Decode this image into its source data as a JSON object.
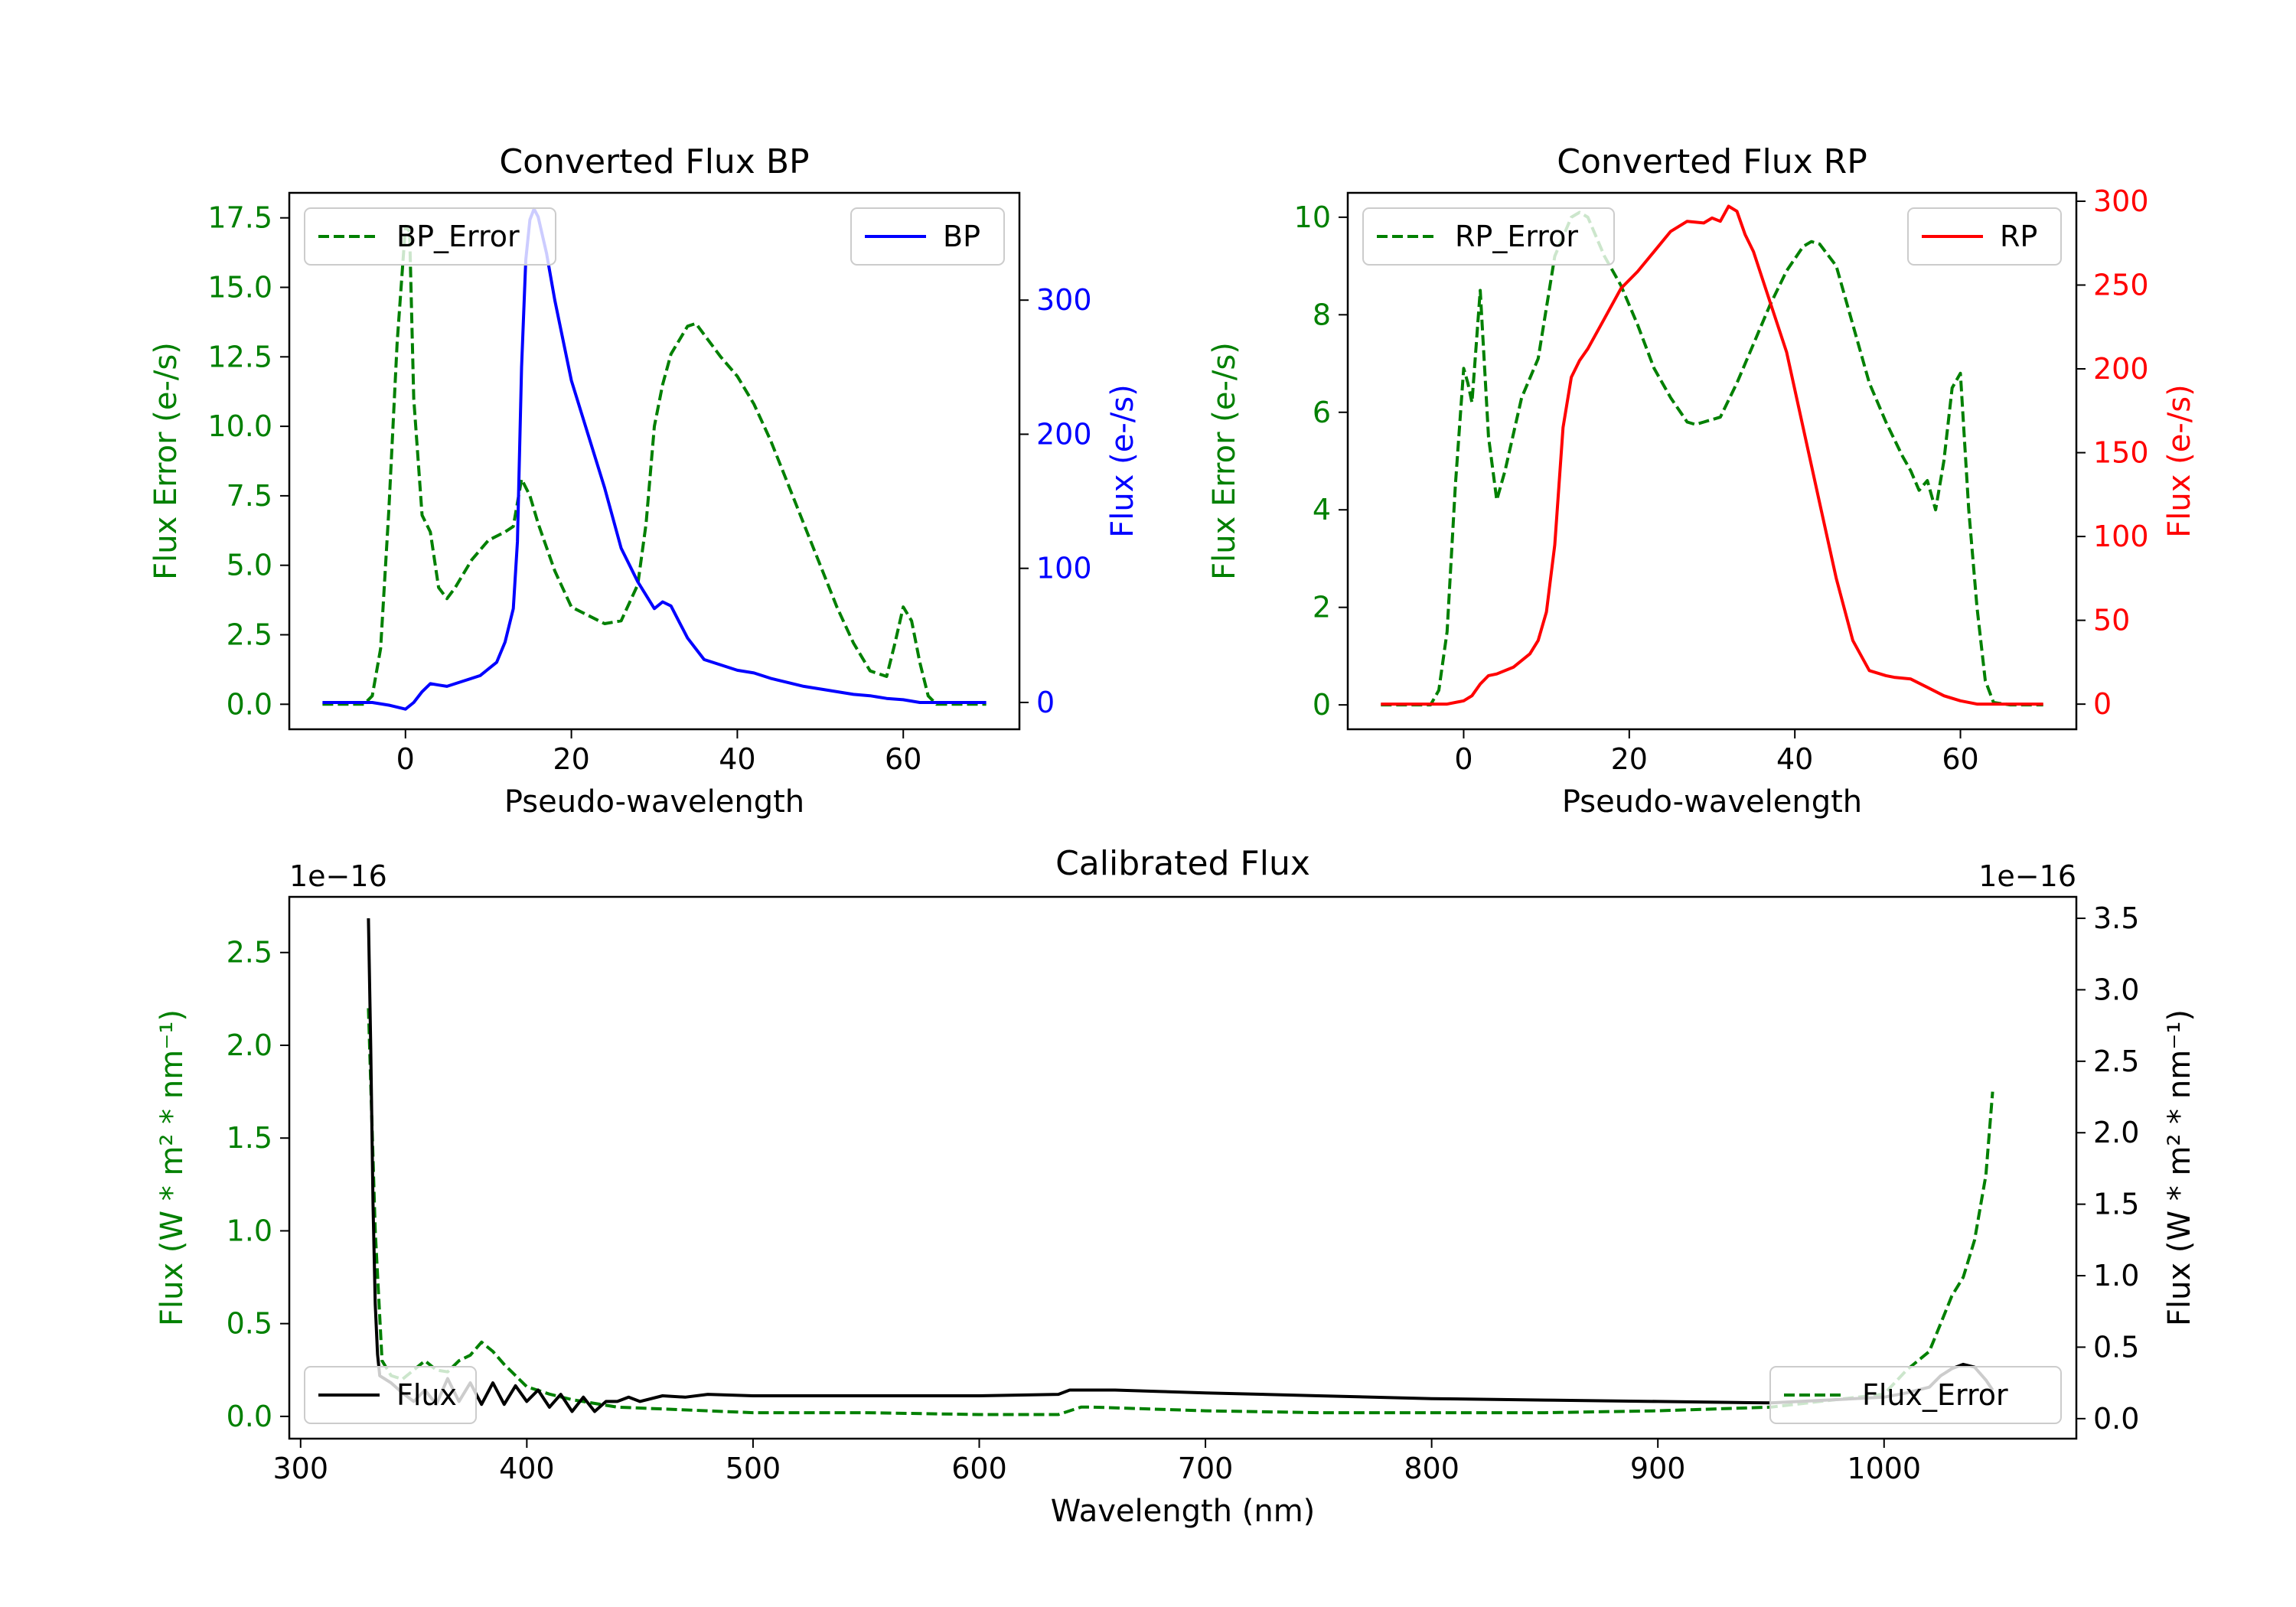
{
  "colors": {
    "bp": "#0000ff",
    "rp": "#ff0000",
    "error": "#008000",
    "flux": "#000000"
  },
  "chart_data": [
    {
      "id": "bp",
      "type": "line",
      "title": "Converted Flux BP",
      "xlabel": "Pseudo-wavelength",
      "ylabel_left": "Flux Error (e-/s)",
      "ylabel_right": "Flux (e-/s)",
      "xlim": [
        -14,
        74
      ],
      "ylim_left": [
        -0.9,
        18.4
      ],
      "ylim_right": [
        -20,
        380
      ],
      "xticks": [
        "0",
        "20",
        "40",
        "60"
      ],
      "yticks_left": [
        "0.0",
        "2.5",
        "5.0",
        "7.5",
        "10.0",
        "12.5",
        "15.0",
        "17.5"
      ],
      "yticks_right": [
        "0",
        "100",
        "200",
        "300"
      ],
      "series": [
        {
          "name": "BP_Error",
          "axis": "left",
          "style": "dashed",
          "color": "#008000",
          "legend": "top-left",
          "x": [
            -10,
            -5,
            -4,
            -3,
            -2,
            -1,
            0,
            0.5,
            1,
            2,
            3,
            4,
            5,
            6,
            8,
            10,
            12,
            13,
            14,
            15,
            16,
            18,
            20,
            22,
            24,
            26,
            28,
            29,
            30,
            31,
            32,
            34,
            35,
            36,
            38,
            40,
            42,
            44,
            46,
            48,
            50,
            52,
            54,
            56,
            58,
            59,
            60,
            61,
            62,
            63,
            64,
            66,
            68,
            70
          ],
          "y": [
            0,
            0,
            0.3,
            2,
            7,
            13,
            17.2,
            17,
            11,
            6.8,
            6.2,
            4.2,
            3.8,
            4.2,
            5.2,
            5.9,
            6.2,
            6.4,
            8.1,
            7.5,
            6.5,
            4.8,
            3.5,
            3.2,
            2.9,
            3.0,
            4.3,
            6.5,
            10,
            11.5,
            12.6,
            13.6,
            13.7,
            13.3,
            12.5,
            11.8,
            10.8,
            9.5,
            8.0,
            6.5,
            5.0,
            3.5,
            2.2,
            1.2,
            1.0,
            2.2,
            3.5,
            3.0,
            1.5,
            0.3,
            0,
            0,
            0,
            0
          ]
        },
        {
          "name": "BP",
          "axis": "right",
          "style": "solid",
          "color": "#0000ff",
          "legend": "top-right",
          "x": [
            -10,
            -4,
            -2,
            0,
            1,
            2,
            3,
            4,
            5,
            7,
            9,
            11,
            12,
            13,
            13.5,
            14,
            14.5,
            15,
            15.5,
            16,
            17,
            18,
            20,
            22,
            24,
            26,
            28,
            30,
            31,
            32,
            33,
            34,
            35,
            36,
            38,
            40,
            42,
            44,
            46,
            48,
            50,
            52,
            54,
            56,
            58,
            60,
            62,
            64,
            66,
            68,
            70
          ],
          "y": [
            0,
            0,
            -2,
            -5,
            0,
            8,
            14,
            13,
            12,
            16,
            20,
            30,
            45,
            70,
            120,
            250,
            330,
            360,
            368,
            362,
            335,
            300,
            240,
            200,
            160,
            115,
            90,
            70,
            75,
            72,
            60,
            48,
            40,
            32,
            28,
            24,
            22,
            18,
            15,
            12,
            10,
            8,
            6,
            5,
            3,
            2,
            0,
            0,
            0,
            0,
            0
          ]
        }
      ]
    },
    {
      "id": "rp",
      "type": "line",
      "title": "Converted Flux RP",
      "xlabel": "Pseudo-wavelength",
      "ylabel_left": "Flux Error (e-/s)",
      "ylabel_right": "Flux (e-/s)",
      "xlim": [
        -14,
        74
      ],
      "ylim_left": [
        -0.5,
        10.5
      ],
      "ylim_right": [
        -15,
        305
      ],
      "xticks": [
        "0",
        "20",
        "40",
        "60"
      ],
      "yticks_left": [
        "0",
        "2",
        "4",
        "6",
        "8",
        "10"
      ],
      "yticks_right": [
        "0",
        "50",
        "100",
        "150",
        "200",
        "250",
        "300"
      ],
      "series": [
        {
          "name": "RP_Error",
          "axis": "left",
          "style": "dashed",
          "color": "#008000",
          "legend": "top-left",
          "x": [
            -10,
            -4,
            -3,
            -2,
            -1,
            0,
            0.5,
            1,
            2,
            2.5,
            3,
            4,
            5,
            7,
            9,
            11,
            13,
            14,
            15,
            17,
            19,
            21,
            23,
            25,
            27,
            28,
            29,
            31,
            33,
            35,
            37,
            39,
            41,
            42,
            43,
            45,
            47,
            49,
            51,
            53,
            54,
            55,
            56,
            57,
            58,
            59,
            60,
            61,
            62,
            63,
            64,
            66,
            70
          ],
          "y": [
            0,
            0,
            0.3,
            1.5,
            4.5,
            6.9,
            6.6,
            6.2,
            8.5,
            7.0,
            5.5,
            4.2,
            4.8,
            6.3,
            7.1,
            9.2,
            10.0,
            10.1,
            10.0,
            9.2,
            8.6,
            7.8,
            6.9,
            6.3,
            5.8,
            5.75,
            5.8,
            5.9,
            6.6,
            7.4,
            8.2,
            8.9,
            9.4,
            9.5,
            9.45,
            9.0,
            7.8,
            6.6,
            5.8,
            5.1,
            4.8,
            4.4,
            4.6,
            4.0,
            5.0,
            6.5,
            6.8,
            4.0,
            2.0,
            0.5,
            0.05,
            0,
            0
          ]
        },
        {
          "name": "RP",
          "axis": "right",
          "style": "solid",
          "color": "#ff0000",
          "legend": "top-right",
          "x": [
            -10,
            -2,
            0,
            1,
            2,
            3,
            4,
            6,
            8,
            9,
            10,
            11,
            12,
            13,
            14,
            15,
            17,
            19,
            21,
            23,
            25,
            27,
            29,
            30,
            31,
            32,
            33,
            34,
            35,
            37,
            39,
            41,
            43,
            45,
            47,
            49,
            51,
            52,
            54,
            56,
            58,
            60,
            62,
            64,
            66,
            70
          ],
          "y": [
            0,
            0,
            2,
            5,
            12,
            17,
            18,
            22,
            30,
            38,
            55,
            95,
            165,
            195,
            205,
            212,
            230,
            248,
            258,
            270,
            282,
            288,
            287,
            290,
            288,
            297,
            294,
            280,
            270,
            240,
            210,
            165,
            120,
            75,
            38,
            20,
            17,
            16,
            15,
            10,
            5,
            2,
            0,
            0,
            0,
            0
          ]
        }
      ]
    },
    {
      "id": "calibrated",
      "type": "line",
      "title": "Calibrated Flux",
      "xlabel": "Wavelength (nm)",
      "ylabel_left": "Flux (W * m² * nm⁻¹)",
      "ylabel_right": "Flux (W * m² * nm⁻¹)",
      "offset_left": "1e−16",
      "offset_right": "1e−16",
      "xlim": [
        295,
        1085
      ],
      "ylim_left": [
        -0.12,
        2.8
      ],
      "ylim_right": [
        -0.14,
        3.65
      ],
      "xticks": [
        "300",
        "400",
        "500",
        "600",
        "700",
        "800",
        "900",
        "1000"
      ],
      "yticks_left": [
        "0.0",
        "0.5",
        "1.0",
        "1.5",
        "2.0",
        "2.5"
      ],
      "yticks_right": [
        "0.0",
        "0.5",
        "1.0",
        "1.5",
        "2.0",
        "2.5",
        "3.0",
        "3.5"
      ],
      "series": [
        {
          "name": "Flux_Error",
          "axis": "left",
          "style": "dashed",
          "color": "#008000",
          "legend": "bottom-right",
          "x": [
            330,
            333,
            336,
            340,
            345,
            350,
            355,
            360,
            365,
            370,
            375,
            380,
            385,
            390,
            395,
            400,
            410,
            420,
            440,
            460,
            500,
            550,
            600,
            635,
            640,
            645,
            650,
            700,
            750,
            800,
            850,
            900,
            950,
            1000,
            1010,
            1020,
            1025,
            1030,
            1035,
            1040,
            1045,
            1048
          ],
          "y": [
            2.2,
            1.0,
            0.3,
            0.22,
            0.2,
            0.25,
            0.3,
            0.25,
            0.24,
            0.3,
            0.33,
            0.4,
            0.35,
            0.28,
            0.22,
            0.16,
            0.12,
            0.09,
            0.05,
            0.04,
            0.02,
            0.02,
            0.01,
            0.01,
            0.03,
            0.05,
            0.05,
            0.03,
            0.02,
            0.02,
            0.02,
            0.03,
            0.05,
            0.12,
            0.25,
            0.35,
            0.5,
            0.65,
            0.75,
            0.95,
            1.3,
            1.75
          ]
        },
        {
          "name": "Flux",
          "axis": "right",
          "style": "solid",
          "color": "#000000",
          "legend": "bottom-left",
          "x": [
            330,
            331,
            332,
            333,
            334,
            335,
            340,
            345,
            350,
            355,
            360,
            365,
            370,
            375,
            380,
            385,
            390,
            395,
            400,
            405,
            410,
            415,
            420,
            425,
            430,
            435,
            440,
            445,
            450,
            460,
            470,
            480,
            500,
            550,
            600,
            635,
            640,
            645,
            650,
            660,
            680,
            700,
            750,
            800,
            850,
            900,
            950,
            1000,
            1010,
            1020,
            1025,
            1030,
            1035,
            1040,
            1045,
            1048
          ],
          "y": [
            3.5,
            2.6,
            1.5,
            0.8,
            0.45,
            0.3,
            0.25,
            0.18,
            0.12,
            0.2,
            0.1,
            0.28,
            0.12,
            0.25,
            0.1,
            0.25,
            0.1,
            0.23,
            0.12,
            0.2,
            0.08,
            0.17,
            0.05,
            0.15,
            0.05,
            0.12,
            0.12,
            0.15,
            0.12,
            0.16,
            0.15,
            0.17,
            0.16,
            0.16,
            0.16,
            0.17,
            0.2,
            0.2,
            0.2,
            0.2,
            0.19,
            0.18,
            0.16,
            0.14,
            0.13,
            0.12,
            0.11,
            0.15,
            0.18,
            0.22,
            0.3,
            0.35,
            0.38,
            0.36,
            0.27,
            0.2
          ]
        }
      ]
    }
  ]
}
